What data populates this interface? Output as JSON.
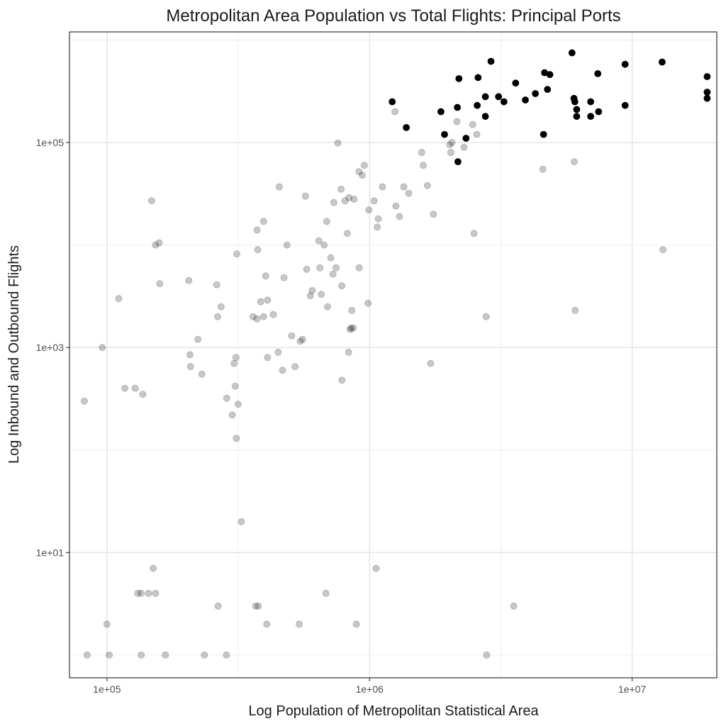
{
  "chart_data": {
    "type": "scatter",
    "title": "Metropolitan Area Population vs Total Flights: Principal Ports",
    "xlabel": "Log Population of Metropolitan Statistical Area",
    "ylabel": "Log Inbound and Outbound Flights",
    "x_scale": "log10",
    "y_scale": "log10",
    "xlim": [
      72000,
      21000000
    ],
    "ylim": [
      0.6,
      1200000
    ],
    "x_ticks": [
      {
        "value": 100000,
        "label": "1e+05"
      },
      {
        "value": 1000000,
        "label": "1e+06"
      },
      {
        "value": 10000000,
        "label": "1e+07"
      }
    ],
    "y_ticks": [
      {
        "value": 10,
        "label": "1e+01"
      },
      {
        "value": 1000,
        "label": "1e+03"
      },
      {
        "value": 100000,
        "label": "1e+05"
      }
    ],
    "grid": true,
    "legend": "none",
    "series": [
      {
        "group": "principal",
        "color": "#000000",
        "opacity": 1.0,
        "points": [
          [
            1220000,
            250000
          ],
          [
            1380000,
            140000
          ],
          [
            1870000,
            200000
          ],
          [
            1930000,
            120000
          ],
          [
            2160000,
            220000
          ],
          [
            2190000,
            420000
          ],
          [
            2170000,
            65000
          ],
          [
            2330000,
            110000
          ],
          [
            2570000,
            230000
          ],
          [
            2590000,
            430000
          ],
          [
            2760000,
            280000
          ],
          [
            2760000,
            180000
          ],
          [
            2900000,
            620000
          ],
          [
            3100000,
            280000
          ],
          [
            3250000,
            250000
          ],
          [
            3600000,
            380000
          ],
          [
            3920000,
            260000
          ],
          [
            4280000,
            300000
          ],
          [
            4600000,
            120000
          ],
          [
            4640000,
            480000
          ],
          [
            4760000,
            330000
          ],
          [
            4860000,
            460000
          ],
          [
            5900000,
            750000
          ],
          [
            6000000,
            270000
          ],
          [
            6050000,
            250000
          ],
          [
            6150000,
            210000
          ],
          [
            6150000,
            180000
          ],
          [
            6950000,
            250000
          ],
          [
            6950000,
            180000
          ],
          [
            7400000,
            470000
          ],
          [
            7450000,
            200000
          ],
          [
            9400000,
            580000
          ],
          [
            9400000,
            230000
          ],
          [
            13000000,
            610000
          ],
          [
            19300000,
            440000
          ],
          [
            19300000,
            310000
          ],
          [
            19300000,
            270000
          ]
        ]
      },
      {
        "group": "other",
        "color": "#000000",
        "opacity": 0.22,
        "points": [
          [
            82000,
            300
          ],
          [
            84000,
            1
          ],
          [
            96000,
            1000
          ],
          [
            100000,
            2
          ],
          [
            102000,
            1
          ],
          [
            111000,
            3000
          ],
          [
            117000,
            400
          ],
          [
            128000,
            400
          ],
          [
            131000,
            4
          ],
          [
            135000,
            4
          ],
          [
            135000,
            1
          ],
          [
            137000,
            350
          ],
          [
            144000,
            4
          ],
          [
            148000,
            27000
          ],
          [
            150000,
            7
          ],
          [
            153000,
            4
          ],
          [
            153000,
            10000
          ],
          [
            158000,
            10500
          ],
          [
            159000,
            4200
          ],
          [
            167000,
            1
          ],
          [
            205000,
            4500
          ],
          [
            207000,
            850
          ],
          [
            208000,
            650
          ],
          [
            222000,
            1200
          ],
          [
            230000,
            550
          ],
          [
            235000,
            1
          ],
          [
            262000,
            4100
          ],
          [
            264000,
            2000
          ],
          [
            265000,
            3
          ],
          [
            272000,
            2500
          ],
          [
            285000,
            1
          ],
          [
            286000,
            320
          ],
          [
            300000,
            220
          ],
          [
            305000,
            700
          ],
          [
            308000,
            420
          ],
          [
            310000,
            800
          ],
          [
            311000,
            130
          ],
          [
            312000,
            8200
          ],
          [
            316000,
            280
          ],
          [
            325000,
            20
          ],
          [
            360000,
            2000
          ],
          [
            368000,
            3
          ],
          [
            373000,
            14000
          ],
          [
            373000,
            1900
          ],
          [
            377000,
            3
          ],
          [
            375000,
            9000
          ],
          [
            385000,
            2800
          ],
          [
            395000,
            17000
          ],
          [
            395000,
            2000
          ],
          [
            402000,
            5000
          ],
          [
            406000,
            2
          ],
          [
            409000,
            2900
          ],
          [
            409000,
            800
          ],
          [
            430000,
            2100
          ],
          [
            449000,
            900
          ],
          [
            453000,
            37000
          ],
          [
            466000,
            600
          ],
          [
            472000,
            4800
          ],
          [
            485000,
            10000
          ],
          [
            505000,
            1300
          ],
          [
            520000,
            650
          ],
          [
            540000,
            2
          ],
          [
            545000,
            1150
          ],
          [
            556000,
            1200
          ],
          [
            570000,
            30000
          ],
          [
            576000,
            5800
          ],
          [
            595000,
            3200
          ],
          [
            605000,
            3600
          ],
          [
            641000,
            11000
          ],
          [
            647000,
            6000
          ],
          [
            655000,
            3300
          ],
          [
            671000,
            10000
          ],
          [
            682000,
            4
          ],
          [
            687000,
            17000
          ],
          [
            692000,
            2500
          ],
          [
            712000,
            7500
          ],
          [
            726000,
            5200
          ],
          [
            731000,
            26000
          ],
          [
            746000,
            6000
          ],
          [
            757000,
            99000
          ],
          [
            779000,
            35000
          ],
          [
            784000,
            4000
          ],
          [
            785000,
            480
          ],
          [
            806000,
            27000
          ],
          [
            823000,
            13000
          ],
          [
            832000,
            900
          ],
          [
            836000,
            29000
          ],
          [
            844000,
            1500
          ],
          [
            850000,
            1550
          ],
          [
            856000,
            2300
          ],
          [
            867000,
            1550
          ],
          [
            873000,
            28000
          ],
          [
            890000,
            2
          ],
          [
            913000,
            6000
          ],
          [
            911000,
            52000
          ],
          [
            938000,
            48000
          ],
          [
            955000,
            60000
          ],
          [
            987000,
            2700
          ],
          [
            994000,
            22000
          ],
          [
            1040000,
            27000
          ],
          [
            1060000,
            7
          ],
          [
            1070000,
            15000
          ],
          [
            1080000,
            18000
          ],
          [
            1120000,
            37000
          ],
          [
            1250000,
            200000
          ],
          [
            1260000,
            24000
          ],
          [
            1300000,
            19000
          ],
          [
            1350000,
            37000
          ],
          [
            1410000,
            32000
          ],
          [
            1580000,
            80000
          ],
          [
            1600000,
            60000
          ],
          [
            1660000,
            38000
          ],
          [
            1710000,
            700
          ],
          [
            1750000,
            20000
          ],
          [
            2020000,
            95000
          ],
          [
            2040000,
            80000
          ],
          [
            2060000,
            100000
          ],
          [
            2150000,
            160000
          ],
          [
            2290000,
            90000
          ],
          [
            2470000,
            150000
          ],
          [
            2500000,
            13000
          ],
          [
            2560000,
            120000
          ],
          [
            2780000,
            2000
          ],
          [
            2790000,
            1
          ],
          [
            3540000,
            3
          ],
          [
            4570000,
            55000
          ],
          [
            6020000,
            65000
          ],
          [
            6070000,
            2300
          ],
          [
            13100000,
            9000
          ]
        ]
      }
    ]
  }
}
